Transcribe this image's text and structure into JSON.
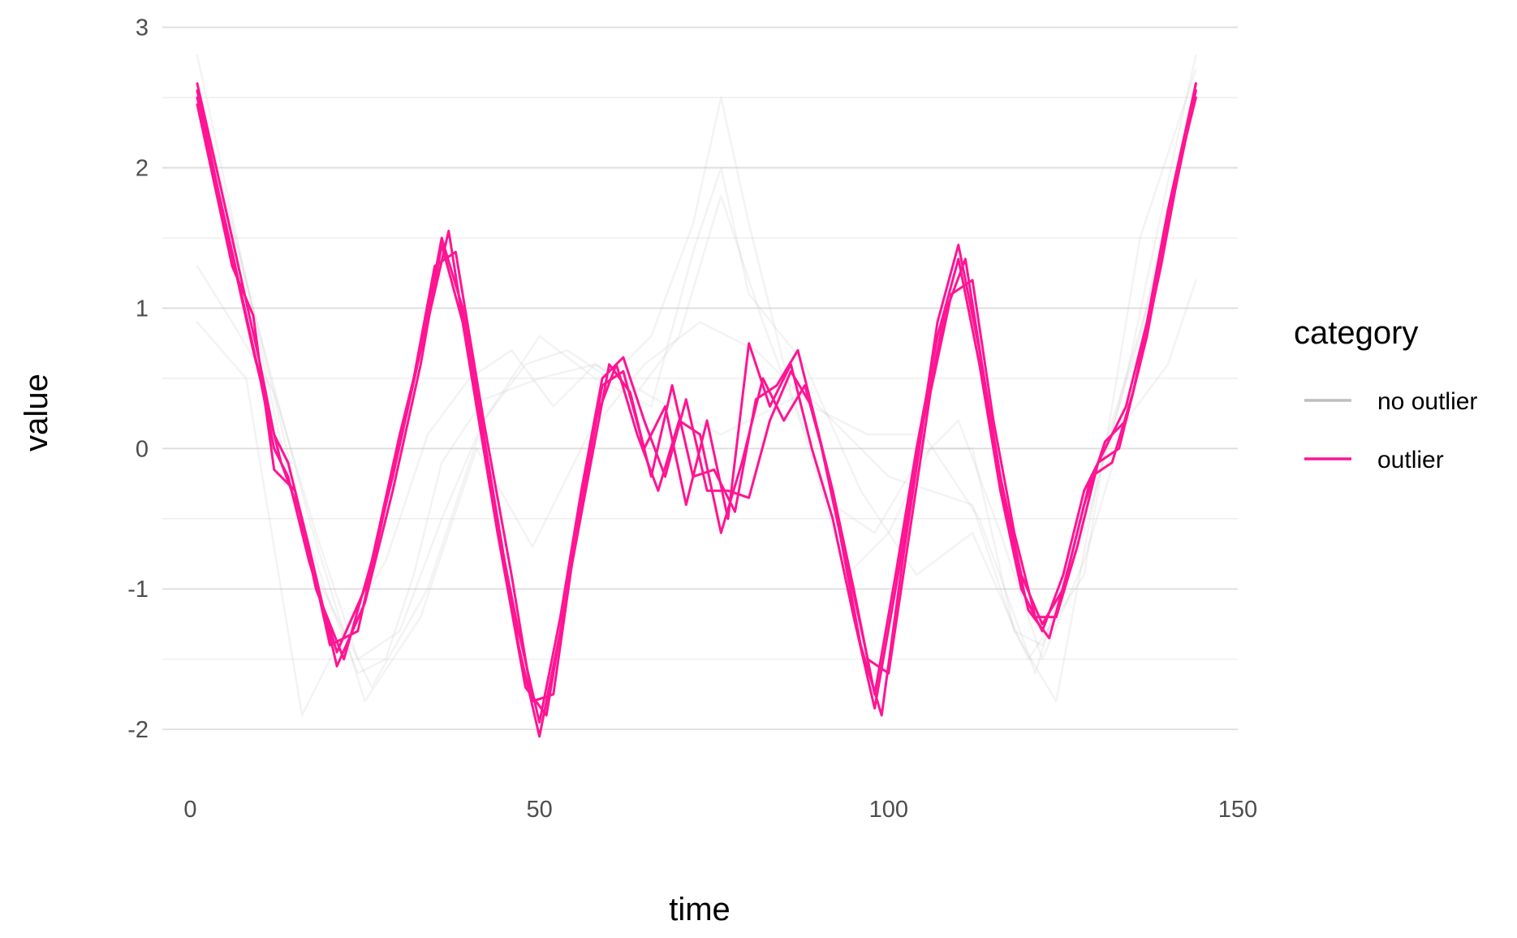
{
  "chart_data": {
    "type": "line",
    "title": "",
    "xlabel": "time",
    "ylabel": "value",
    "xlim": [
      -4,
      150
    ],
    "ylim": [
      -2.3,
      3.05
    ],
    "x_ticks": [
      0,
      50,
      100,
      150
    ],
    "x_tick_labels": [
      "0",
      "50",
      "100",
      "150"
    ],
    "y_ticks": [
      -2,
      -1,
      0,
      1,
      2,
      3
    ],
    "y_tick_labels": [
      "-2",
      "-1",
      "0",
      "1",
      "2",
      "3"
    ],
    "y_minor_ticks": [
      -1.5,
      -0.5,
      0.5,
      1.5,
      2.5
    ],
    "grid": true,
    "legend": {
      "title": "category",
      "position": "right",
      "entries": [
        {
          "label": "no outlier",
          "color": "#bebebe"
        },
        {
          "label": "outlier",
          "color": "#ff1493"
        }
      ]
    },
    "series": [
      {
        "category": "no outlier",
        "color": "#bebebe",
        "opacity": 0.18,
        "x": [
          1,
          8,
          14,
          20,
          24,
          28,
          32,
          36,
          42,
          50,
          58,
          65,
          72,
          76,
          82,
          88,
          94,
          100,
          106,
          112,
          118,
          122,
          128,
          134,
          140,
          144
        ],
        "y": [
          2.8,
          1.2,
          -0.2,
          -1.1,
          -1.6,
          -1.5,
          -0.9,
          -0.1,
          0.35,
          0.5,
          0.6,
          0.4,
          0.2,
          0.1,
          0.25,
          0.4,
          0.1,
          -0.2,
          -0.3,
          -0.4,
          -1.3,
          -1.4,
          -0.6,
          0.5,
          1.9,
          2.8
        ]
      },
      {
        "category": "no outlier",
        "color": "#bebebe",
        "opacity": 0.18,
        "x": [
          1,
          6,
          12,
          18,
          24,
          30,
          36,
          42,
          48,
          54,
          60,
          66,
          72,
          76,
          80,
          86,
          92,
          98,
          104,
          110,
          116,
          122,
          128,
          134,
          140,
          144
        ],
        "y": [
          1.3,
          0.9,
          0.4,
          -0.6,
          -1.5,
          -1.3,
          -0.5,
          0.2,
          0.6,
          0.7,
          0.5,
          0.8,
          1.6,
          2.5,
          1.6,
          0.4,
          -0.4,
          -0.6,
          -0.1,
          0.2,
          -0.6,
          -1.5,
          -0.8,
          0.2,
          0.6,
          1.2
        ]
      },
      {
        "category": "no outlier",
        "color": "#bebebe",
        "opacity": 0.18,
        "x": [
          1,
          8,
          16,
          22,
          28,
          34,
          40,
          46,
          52,
          58,
          64,
          70,
          76,
          82,
          88,
          94,
          100,
          106,
          112,
          118,
          124,
          130,
          136,
          144
        ],
        "y": [
          0.9,
          0.5,
          -1.9,
          -1.3,
          -0.8,
          0.1,
          0.5,
          0.7,
          0.3,
          0.6,
          0.4,
          0.8,
          1.8,
          0.9,
          0.1,
          -0.9,
          -0.6,
          0.0,
          0.0,
          -1.3,
          -1.8,
          -0.2,
          0.8,
          2.6
        ]
      },
      {
        "category": "no outlier",
        "color": "#bebebe",
        "opacity": 0.18,
        "x": [
          1,
          10,
          18,
          26,
          34,
          42,
          50,
          58,
          66,
          72,
          76,
          80,
          88,
          96,
          104,
          112,
          120,
          128,
          136,
          144
        ],
        "y": [
          2.6,
          0.8,
          -0.9,
          -1.7,
          -1.0,
          0.2,
          0.8,
          0.5,
          0.3,
          1.4,
          2.0,
          1.1,
          0.6,
          -0.3,
          -0.9,
          -0.6,
          -1.5,
          -0.9,
          1.5,
          2.7
        ]
      },
      {
        "category": "no outlier",
        "color": "#bebebe",
        "opacity": 0.18,
        "x": [
          1,
          9,
          17,
          25,
          33,
          41,
          49,
          57,
          65,
          73,
          81,
          89,
          97,
          105,
          113,
          121,
          129,
          137,
          144
        ],
        "y": [
          2.5,
          1.0,
          -0.5,
          -1.8,
          -1.2,
          0.0,
          -0.7,
          0.1,
          0.6,
          0.9,
          0.7,
          0.3,
          0.1,
          0.1,
          -0.5,
          -1.6,
          -0.3,
          1.0,
          2.5
        ]
      },
      {
        "category": "outlier",
        "color": "#ff1493",
        "opacity": 1,
        "x": [
          1,
          6,
          10,
          12,
          14,
          17,
          21,
          25,
          29,
          33,
          36,
          39,
          43,
          47,
          50,
          53,
          56,
          59,
          62,
          65,
          68,
          71,
          74,
          77,
          80,
          83,
          86,
          89,
          92,
          95,
          98,
          101,
          104,
          107,
          110,
          113,
          116,
          119,
          122,
          125,
          128,
          131,
          134,
          137,
          140,
          144
        ],
        "y": [
          2.6,
          1.5,
          0.6,
          0.1,
          -0.1,
          -0.7,
          -1.55,
          -1.1,
          -0.3,
          0.6,
          1.45,
          0.9,
          -0.3,
          -1.3,
          -1.95,
          -1.2,
          -0.3,
          0.5,
          0.65,
          0.2,
          -0.2,
          0.35,
          -0.3,
          -0.3,
          -0.35,
          0.2,
          0.55,
          0.3,
          -0.3,
          -1.0,
          -1.75,
          -0.9,
          0.0,
          0.8,
          1.35,
          0.6,
          -0.3,
          -1.0,
          -1.3,
          -0.9,
          -0.3,
          0.0,
          0.3,
          0.9,
          1.7,
          2.6
        ]
      },
      {
        "category": "outlier",
        "color": "#ff1493",
        "opacity": 1,
        "x": [
          1,
          6,
          10,
          12,
          14,
          17,
          21,
          25,
          29,
          33,
          36,
          39,
          43,
          47,
          50,
          53,
          56,
          59,
          62,
          65,
          68,
          71,
          74,
          77,
          80,
          83,
          86,
          89,
          92,
          95,
          98,
          101,
          104,
          107,
          110,
          113,
          116,
          119,
          122,
          125,
          128,
          131,
          134,
          137,
          140,
          144
        ],
        "y": [
          2.5,
          1.4,
          0.5,
          0.0,
          -0.2,
          -0.8,
          -1.45,
          -1.0,
          -0.2,
          0.7,
          1.5,
          1.0,
          -0.2,
          -1.4,
          -2.05,
          -1.3,
          -0.4,
          0.45,
          0.55,
          0.0,
          0.3,
          -0.4,
          0.2,
          -0.5,
          0.75,
          0.3,
          0.6,
          0.0,
          -0.5,
          -1.2,
          -1.85,
          -1.0,
          -0.1,
          0.9,
          1.45,
          0.7,
          -0.2,
          -0.9,
          -1.25,
          -1.0,
          -0.4,
          0.05,
          0.2,
          0.8,
          1.6,
          2.55
        ]
      },
      {
        "category": "outlier",
        "color": "#ff1493",
        "opacity": 1,
        "x": [
          1,
          6,
          9,
          12,
          15,
          18,
          22,
          26,
          30,
          34,
          37,
          40,
          44,
          48,
          51,
          54,
          57,
          60,
          63,
          66,
          69,
          72,
          75,
          78,
          81,
          84,
          87,
          90,
          93,
          96,
          99,
          102,
          105,
          108,
          111,
          114,
          117,
          120,
          123,
          126,
          129,
          132,
          135,
          138,
          141,
          144
        ],
        "y": [
          2.45,
          1.3,
          0.95,
          -0.15,
          -0.3,
          -1.0,
          -1.5,
          -0.8,
          0.1,
          0.9,
          1.55,
          0.6,
          -0.6,
          -1.7,
          -1.9,
          -1.0,
          -0.2,
          0.6,
          0.4,
          -0.2,
          0.45,
          -0.2,
          -0.15,
          -0.45,
          0.35,
          0.45,
          0.7,
          0.1,
          -0.6,
          -1.4,
          -1.9,
          -0.8,
          0.2,
          0.95,
          1.35,
          0.4,
          -0.5,
          -1.15,
          -1.35,
          -0.8,
          -0.2,
          -0.1,
          0.4,
          1.1,
          1.9,
          2.5
        ]
      },
      {
        "category": "outlier",
        "color": "#ff1493",
        "opacity": 1,
        "x": [
          1,
          5,
          9,
          13,
          16,
          20,
          24,
          28,
          32,
          35,
          38,
          42,
          46,
          49,
          52,
          55,
          58,
          61,
          64,
          67,
          70,
          73,
          76,
          79,
          82,
          85,
          88,
          91,
          94,
          97,
          100,
          103,
          106,
          109,
          112,
          115,
          118,
          121,
          124,
          127,
          130,
          133,
          136,
          139,
          142,
          144
        ],
        "y": [
          2.55,
          1.6,
          0.7,
          -0.1,
          -0.5,
          -1.4,
          -1.3,
          -0.4,
          0.5,
          1.3,
          1.4,
          0.2,
          -0.9,
          -1.8,
          -1.75,
          -0.7,
          0.2,
          0.6,
          0.1,
          -0.3,
          0.2,
          0.1,
          -0.6,
          -0.1,
          0.5,
          0.2,
          0.45,
          -0.1,
          -0.8,
          -1.5,
          -1.6,
          -0.6,
          0.4,
          1.1,
          1.2,
          0.2,
          -0.6,
          -1.2,
          -1.2,
          -0.7,
          -0.1,
          0.0,
          0.6,
          1.3,
          2.1,
          2.6
        ]
      }
    ]
  }
}
